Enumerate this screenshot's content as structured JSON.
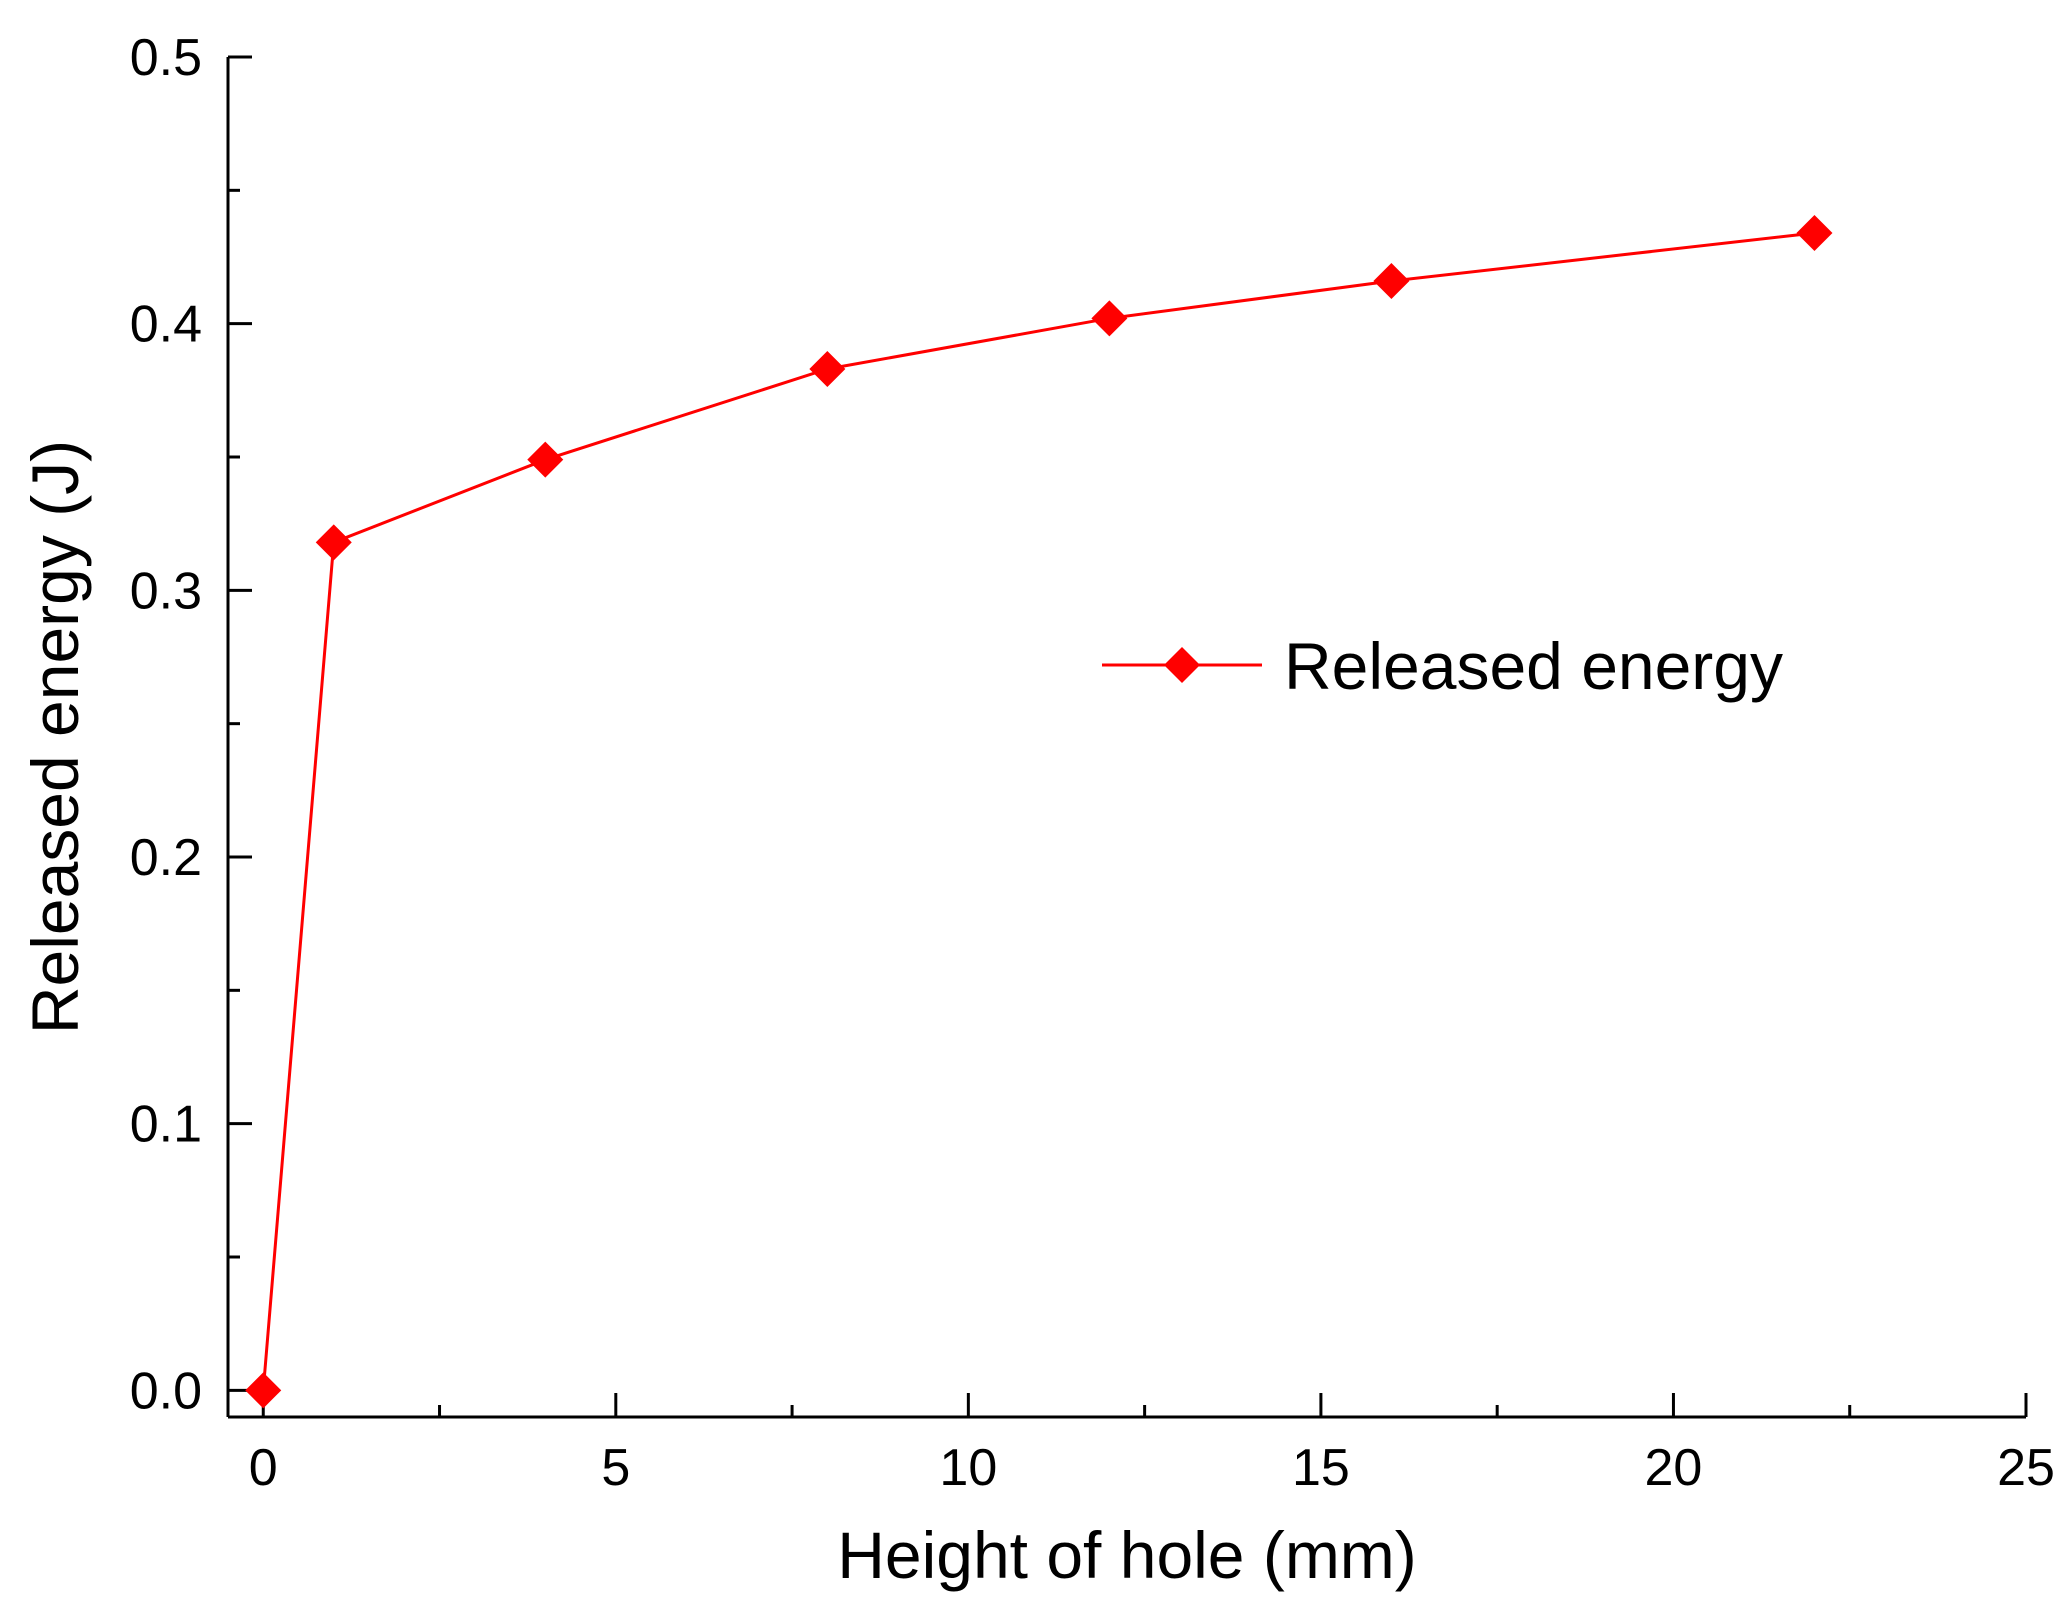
{
  "chart_data": {
    "type": "line",
    "title": "",
    "xlabel": "Height of hole (mm)",
    "ylabel": "Released energy (J)",
    "xlim": [
      -0.5,
      25
    ],
    "ylim": [
      -0.01,
      0.5
    ],
    "xticks": [
      0,
      5,
      10,
      15,
      20,
      25
    ],
    "xtick_labels": [
      "0",
      "5",
      "10",
      "15",
      "20",
      "25"
    ],
    "yticks": [
      0.0,
      0.1,
      0.2,
      0.3,
      0.4,
      0.5
    ],
    "ytick_labels": [
      "0.0",
      "0.1",
      "0.2",
      "0.3",
      "0.4",
      "0.5"
    ],
    "grid": false,
    "legend_position": "center-right",
    "series": [
      {
        "name": "Released energy",
        "color": "#ff0000",
        "marker": "diamond",
        "x": [
          0,
          1,
          4,
          8,
          12,
          16,
          22
        ],
        "y": [
          0.0,
          0.318,
          0.349,
          0.383,
          0.402,
          0.416,
          0.434
        ]
      }
    ]
  }
}
